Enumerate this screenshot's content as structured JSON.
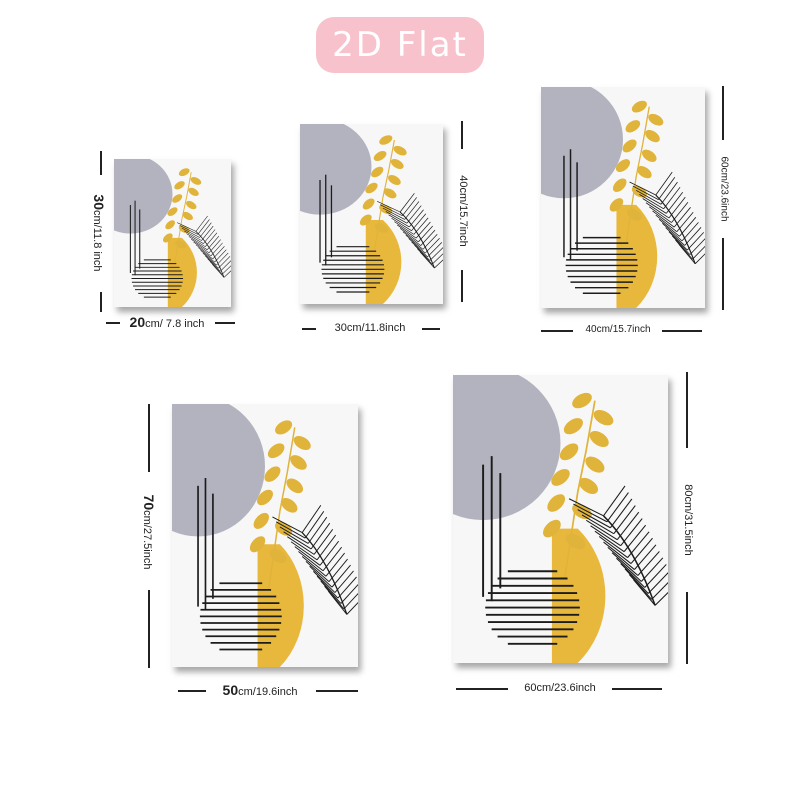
{
  "header": {
    "badge_label": "2D Flat"
  },
  "colors": {
    "badge": "#f8c2cc",
    "gray_circle": "#b3b3bf",
    "mustard": "#e8b83c",
    "leaf": "#e0b33a",
    "line": "#1c1c1c",
    "paper": "#f7f7f7"
  },
  "posters": [
    {
      "width_label_num": "20",
      "width_label_unit": "cm/ 7.8 inch",
      "height_label_num": "30",
      "height_label_unit": "cm/11.8 inch"
    },
    {
      "width_label_num": "",
      "width_label_unit": "30cm/11.8inch",
      "height_label_num": "",
      "height_label_unit": "40cm/15.7inch"
    },
    {
      "width_label_num": "",
      "width_label_unit": "40cm/15.7inch",
      "height_label_num": "",
      "height_label_unit": "60cm/23.6inch"
    },
    {
      "width_label_num": "50",
      "width_label_unit": "cm/19.6inch",
      "height_label_num": "70",
      "height_label_unit": "cm/27.5inch"
    },
    {
      "width_label_num": "",
      "width_label_unit": "60cm/23.6inch",
      "height_label_num": "",
      "height_label_unit": "80cm/31.5inch"
    }
  ]
}
